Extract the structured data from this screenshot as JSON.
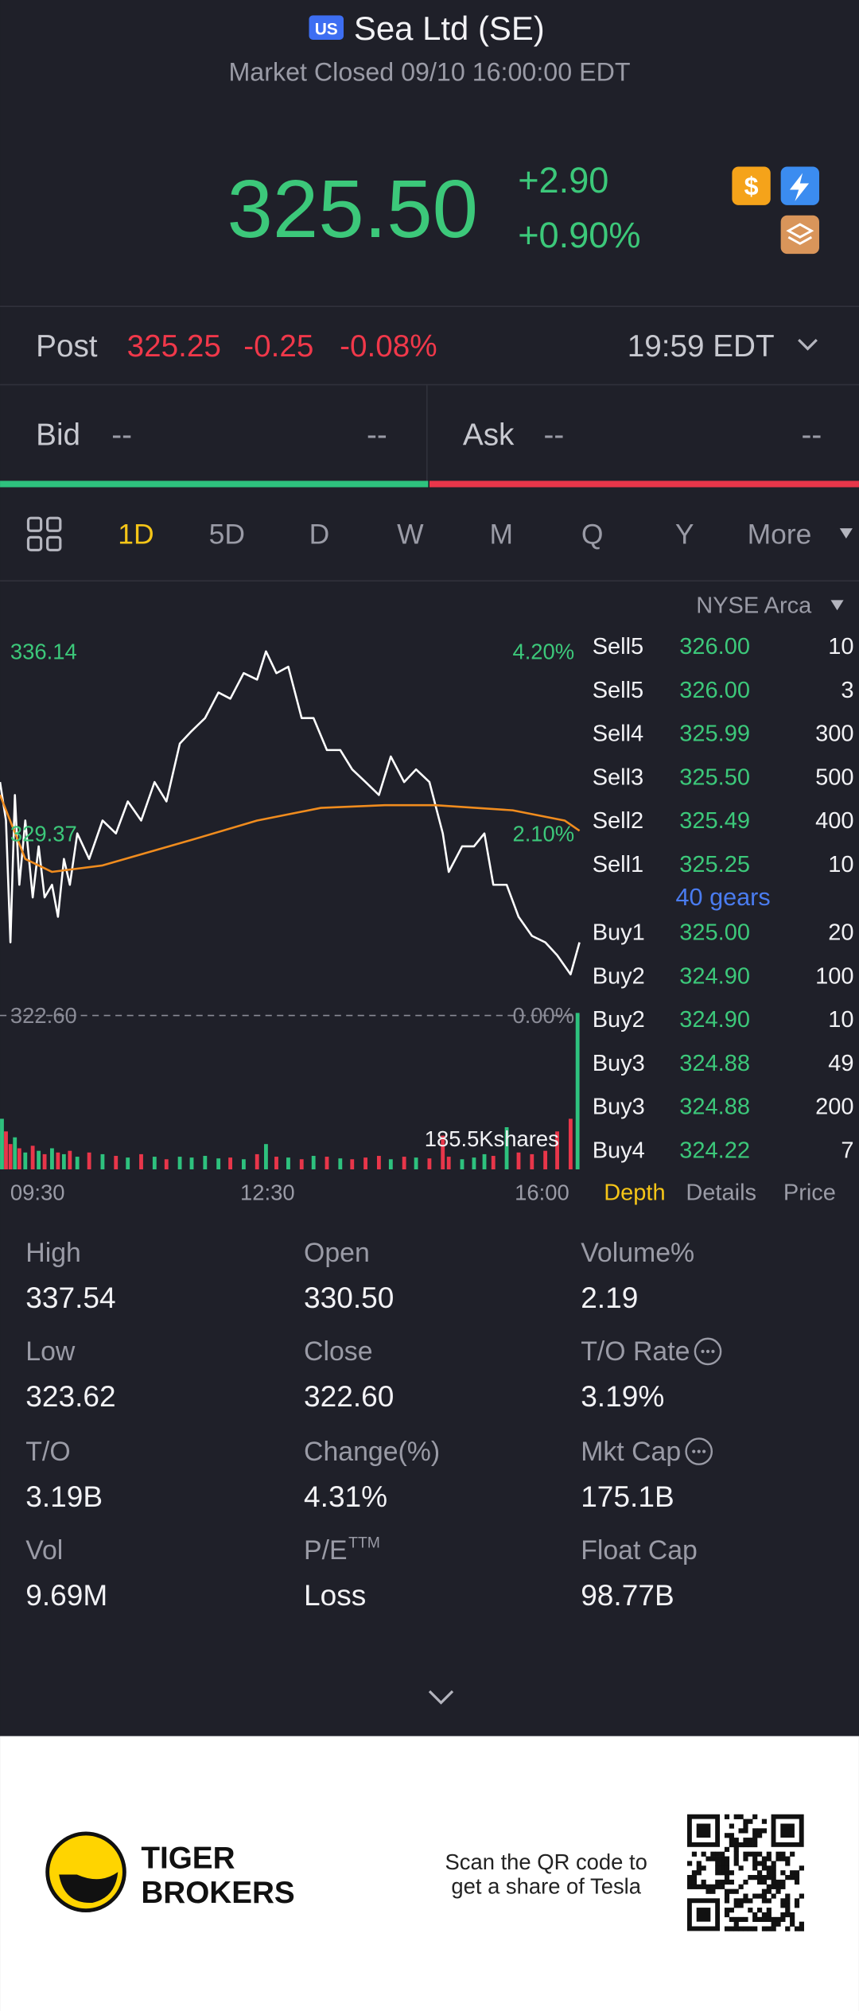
{
  "header": {
    "badge": "US",
    "title": "Sea Ltd (SE)",
    "status": "Market Closed 09/10 16:00:00 EDT"
  },
  "quote": {
    "price": "325.50",
    "change": "+2.90",
    "change_pct": "+0.90%"
  },
  "post": {
    "label": "Post",
    "price": "325.25",
    "change": "-0.25",
    "change_pct": "-0.08%",
    "time": "19:59 EDT"
  },
  "bid": {
    "label": "Bid",
    "price": "--",
    "size": "--"
  },
  "ask": {
    "label": "Ask",
    "price": "--",
    "size": "--"
  },
  "tabs": {
    "items": [
      "1D",
      "5D",
      "D",
      "W",
      "M",
      "Q",
      "Y",
      "More"
    ],
    "active": 0
  },
  "exchange": "NYSE Arca",
  "chart_data": {
    "type": "line",
    "xlim": [
      0,
      390
    ],
    "xticks": [
      {
        "value": 0,
        "label": "09:30"
      },
      {
        "value": 180,
        "label": "12:30"
      },
      {
        "value": 390,
        "label": "16:00"
      }
    ],
    "ylim": [
      322.6,
      336.14
    ],
    "yticks": [
      {
        "value": 322.6,
        "label": "322.60"
      },
      329.37,
      336.14
    ],
    "y2lim": [
      0,
      4.2
    ],
    "y2ticks": [
      {
        "value": 0,
        "label": "0.00%"
      },
      {
        "value": 2.1,
        "label": "2.10%"
      },
      {
        "value": 4.2,
        "label": "4.20%"
      }
    ],
    "series": [
      {
        "color": "#ffffff",
        "x": [
          0,
          4,
          7,
          10,
          13,
          17,
          22,
          26,
          30,
          35,
          39,
          43,
          47,
          52,
          60,
          69,
          78,
          86,
          95,
          104,
          112,
          121,
          129,
          138,
          147,
          155,
          164,
          173,
          179,
          186,
          194,
          203,
          211,
          220,
          229,
          237,
          246,
          255,
          263,
          272,
          280,
          289,
          298,
          302,
          311,
          319,
          326,
          332,
          341,
          349,
          358,
          367,
          375,
          384,
          390
        ],
        "values": [
          331.28,
          329.85,
          325.32,
          330.8,
          327.46,
          329.85,
          326.99,
          328.89,
          326.99,
          327.46,
          326.27,
          328.42,
          327.46,
          329.37,
          328.42,
          329.85,
          329.37,
          330.56,
          329.85,
          331.28,
          330.56,
          332.71,
          333.18,
          333.66,
          334.61,
          334.38,
          335.33,
          335.09,
          336.14,
          335.33,
          335.57,
          333.66,
          333.66,
          332.47,
          332.47,
          331.75,
          331.28,
          330.8,
          332.23,
          331.28,
          331.75,
          331.28,
          329.37,
          327.94,
          328.89,
          328.89,
          329.37,
          327.46,
          327.46,
          326.27,
          325.56,
          325.32,
          324.84,
          324.13,
          325.32
        ]
      },
      {
        "color": "#f08c1e",
        "x": [
          0,
          17,
          35,
          69,
          129,
          173,
          216,
          259,
          293,
          345,
          380,
          390
        ],
        "values": [
          330.8,
          328.42,
          327.94,
          328.18,
          329.13,
          329.85,
          330.32,
          330.42,
          330.42,
          330.23,
          329.85,
          329.47
        ]
      }
    ],
    "volume": {
      "max": {
        "value": 185.5,
        "label": "185.5Kshares"
      },
      "up_color": "#2ec27e",
      "down_color": "#e8364a",
      "values": [
        60,
        45,
        30,
        38,
        25,
        20,
        28,
        22,
        18,
        25,
        20,
        18,
        22,
        15,
        20,
        18,
        16,
        14,
        18,
        15,
        12,
        15,
        14,
        16,
        13,
        14,
        12,
        18,
        30,
        15,
        14,
        12,
        16,
        15,
        13,
        12,
        14,
        16,
        12,
        15,
        14,
        13,
        40,
        15,
        12,
        14,
        18,
        16,
        50,
        20,
        18,
        22,
        45,
        60,
        185.5
      ]
    }
  },
  "order_book": {
    "rows": [
      {
        "side": "Sell5",
        "price": "326.00",
        "size": "10"
      },
      {
        "side": "Sell5",
        "price": "326.00",
        "size": "3"
      },
      {
        "side": "Sell4",
        "price": "325.99",
        "size": "300"
      },
      {
        "side": "Sell3",
        "price": "325.50",
        "size": "500"
      },
      {
        "side": "Sell2",
        "price": "325.49",
        "size": "400"
      },
      {
        "side": "Sell1",
        "price": "325.25",
        "size": "10"
      },
      {
        "side": "Buy1",
        "price": "325.00",
        "size": "20"
      },
      {
        "side": "Buy2",
        "price": "324.90",
        "size": "100"
      },
      {
        "side": "Buy2",
        "price": "324.90",
        "size": "10"
      },
      {
        "side": "Buy3",
        "price": "324.88",
        "size": "49"
      },
      {
        "side": "Buy3",
        "price": "324.88",
        "size": "200"
      },
      {
        "side": "Buy4",
        "price": "324.22",
        "size": "7"
      }
    ],
    "gears": "40 gears"
  },
  "panel_tabs": {
    "items": [
      "Depth",
      "Details",
      "Price"
    ],
    "active": 0
  },
  "stats": [
    {
      "label": "High",
      "value": "337.54"
    },
    {
      "label": "Open",
      "value": "330.50"
    },
    {
      "label": "Volume%",
      "value": "2.19"
    },
    {
      "label": "Low",
      "value": "323.62"
    },
    {
      "label": "Close",
      "value": "322.60"
    },
    {
      "label": "T/O Rate",
      "value": "3.19%",
      "info": true
    },
    {
      "label": "T/O",
      "value": "3.19B"
    },
    {
      "label": "Change(%)",
      "value": "4.31%"
    },
    {
      "label": "Mkt Cap",
      "value": "175.1B",
      "info": true
    },
    {
      "label": "Vol",
      "value": "9.69M"
    },
    {
      "label": "P/E",
      "label_sup": "TTM",
      "value": "Loss"
    },
    {
      "label": "Float Cap",
      "value": "98.77B"
    }
  ],
  "footer": {
    "brand": [
      "TIGER",
      "BROKERS"
    ],
    "promo": [
      "Scan the QR code to",
      "get a share of Tesla"
    ]
  }
}
